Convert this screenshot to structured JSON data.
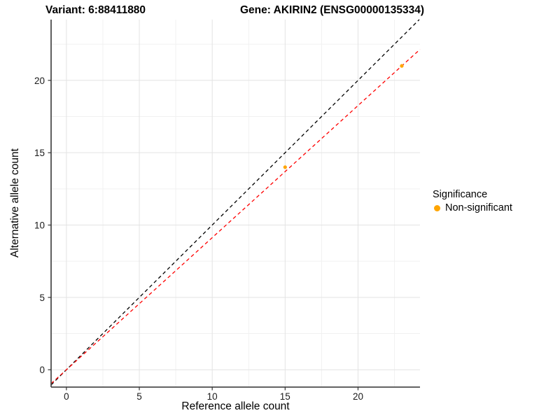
{
  "chart_data": {
    "type": "scatter",
    "titles": {
      "variant": "Variant: 6:88411880",
      "gene": "Gene: AKIRIN2 (ENSG00000135334)"
    },
    "xlabel": "Reference allele count",
    "ylabel": "Alternative allele count",
    "xlim": [
      -1.05,
      24.25
    ],
    "ylim": [
      -1.2,
      24.2
    ],
    "x_ticks": [
      0,
      5,
      10,
      15,
      20
    ],
    "y_ticks": [
      0,
      5,
      10,
      15,
      20
    ],
    "minor_step": 2.5,
    "grid": {
      "background": "#FFFFFF",
      "major_color": "#E3E3E3",
      "minor_color": "#F1F1F1"
    },
    "axis_color": "#4D4D4D",
    "tick_color": "#333333",
    "points": [
      {
        "x": 15,
        "y": 14,
        "series": "Non-significant"
      },
      {
        "x": 23,
        "y": 21,
        "series": "Non-significant"
      }
    ],
    "point_color": "#FFA500",
    "point_radius": 2.6,
    "lines": [
      {
        "name": "identity",
        "slope": 1.0,
        "intercept": 0,
        "color": "#000000",
        "dash": "5,4"
      },
      {
        "name": "fit",
        "slope": 0.913,
        "intercept": 0,
        "color": "#FF0000",
        "dash": "5,4"
      }
    ],
    "legend": {
      "title": "Significance",
      "position": "right",
      "items": [
        {
          "label": "Non-significant",
          "color": "#FFA500"
        }
      ]
    }
  }
}
